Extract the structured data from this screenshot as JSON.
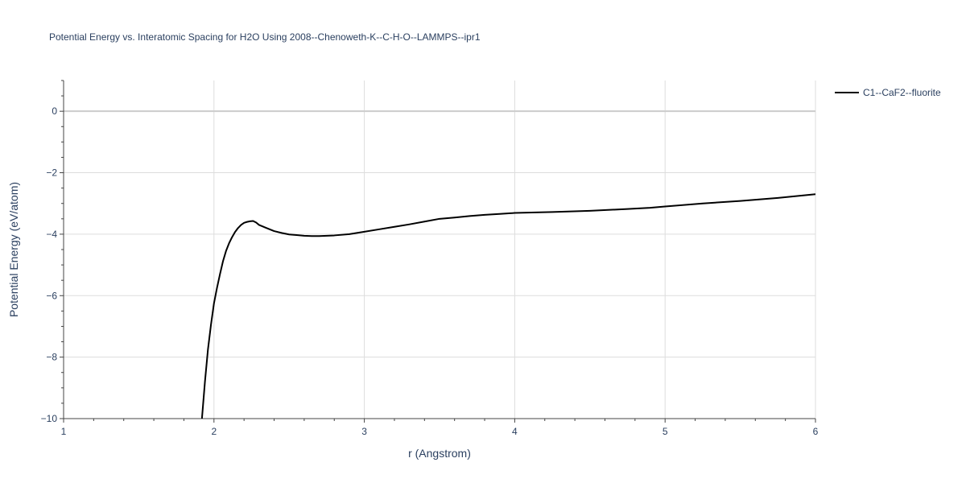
{
  "chart_data": {
    "type": "line",
    "title": "Potential Energy vs. Interatomic Spacing for H2O Using 2008--Chenoweth-K--C-H-O--LAMMPS--ipr1",
    "xlabel": "r (Angstrom)",
    "ylabel": "Potential Energy (eV/atom)",
    "xlim": [
      1,
      6
    ],
    "ylim": [
      -10,
      1
    ],
    "x_ticks": [
      1,
      2,
      3,
      4,
      5,
      6
    ],
    "x_tick_labels": [
      "1",
      "2",
      "3",
      "4",
      "5",
      "6"
    ],
    "y_ticks": [
      0,
      -2,
      -4,
      -6,
      -8,
      -10
    ],
    "y_tick_labels": [
      "0",
      "−2",
      "−4",
      "−6",
      "−8",
      "−10"
    ],
    "grid": true,
    "legend_position": "top-right",
    "series": [
      {
        "name": "C1--CaF2--fluorite",
        "color": "#000000",
        "x": [
          1.92,
          1.94,
          1.96,
          1.98,
          2.0,
          2.02,
          2.04,
          2.06,
          2.08,
          2.1,
          2.12,
          2.14,
          2.16,
          2.18,
          2.2,
          2.22,
          2.24,
          2.26,
          2.28,
          2.3,
          2.35,
          2.4,
          2.45,
          2.5,
          2.55,
          2.6,
          2.65,
          2.7,
          2.8,
          2.9,
          3.0,
          3.1,
          3.2,
          3.3,
          3.4,
          3.5,
          3.6,
          3.7,
          3.8,
          3.9,
          4.0,
          4.25,
          4.5,
          4.75,
          4.9,
          5.0,
          5.25,
          5.5,
          5.75,
          6.0
        ],
        "y": [
          -10.0,
          -8.8,
          -7.75,
          -6.95,
          -6.25,
          -5.75,
          -5.3,
          -4.88,
          -4.55,
          -4.3,
          -4.1,
          -3.93,
          -3.8,
          -3.7,
          -3.63,
          -3.6,
          -3.58,
          -3.57,
          -3.62,
          -3.7,
          -3.8,
          -3.9,
          -3.96,
          -4.01,
          -4.03,
          -4.05,
          -4.06,
          -4.06,
          -4.04,
          -4.0,
          -3.92,
          -3.84,
          -3.76,
          -3.68,
          -3.59,
          -3.5,
          -3.46,
          -3.41,
          -3.37,
          -3.34,
          -3.31,
          -3.28,
          -3.24,
          -3.18,
          -3.14,
          -3.1,
          -3.0,
          -2.92,
          -2.82,
          -2.7
        ]
      }
    ]
  },
  "colors": {
    "axis_text": "#2a3f5f",
    "grid": "#dddddd",
    "zero_line": "#cccccc",
    "line": "#000000"
  }
}
